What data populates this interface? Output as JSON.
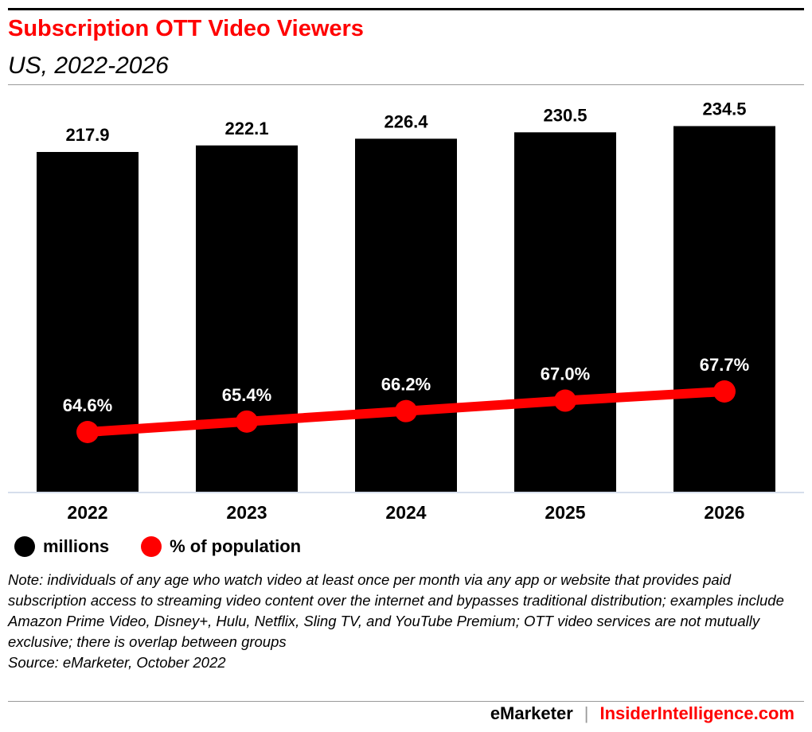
{
  "header": {
    "title": "Subscription OTT Video Viewers",
    "subtitle": "US, 2022-2026"
  },
  "chart_data": {
    "type": "bar",
    "categories": [
      "2022",
      "2023",
      "2024",
      "2025",
      "2026"
    ],
    "series": [
      {
        "name": "millions",
        "type": "bar",
        "values": [
          217.9,
          222.1,
          226.4,
          230.5,
          234.5
        ],
        "labels": [
          "217.9",
          "222.1",
          "226.4",
          "230.5",
          "234.5"
        ],
        "color": "#000000"
      },
      {
        "name": "% of population",
        "type": "line",
        "values": [
          64.6,
          65.4,
          66.2,
          67.0,
          67.7
        ],
        "labels": [
          "64.6%",
          "65.4%",
          "66.2%",
          "67.0%",
          "67.7%"
        ],
        "color": "#ff0000"
      }
    ],
    "title": "Subscription OTT Video Viewers",
    "subtitle": "US, 2022-2026",
    "legend_position": "bottom-left",
    "grid": false
  },
  "legend": [
    {
      "label": "millions",
      "color": "#000000"
    },
    {
      "label": "% of population",
      "color": "#ff0000"
    }
  ],
  "note": "Note: individuals of any age who watch video at least once per month via any app or website that provides paid subscription access to streaming video content over the internet and bypasses traditional distribution; examples include Amazon Prime Video, Disney+, Hulu, Netflix, Sling TV, and YouTube Premium; OTT video services are not mutually exclusive; there is overlap between groups",
  "source": "Source: eMarketer, October 2022",
  "footer": {
    "brand": "eMarketer",
    "separator": "|",
    "site": "InsiderIntelligence.com"
  },
  "colors": {
    "accent": "#ff0000",
    "bar": "#000000",
    "rule": "#999999"
  }
}
